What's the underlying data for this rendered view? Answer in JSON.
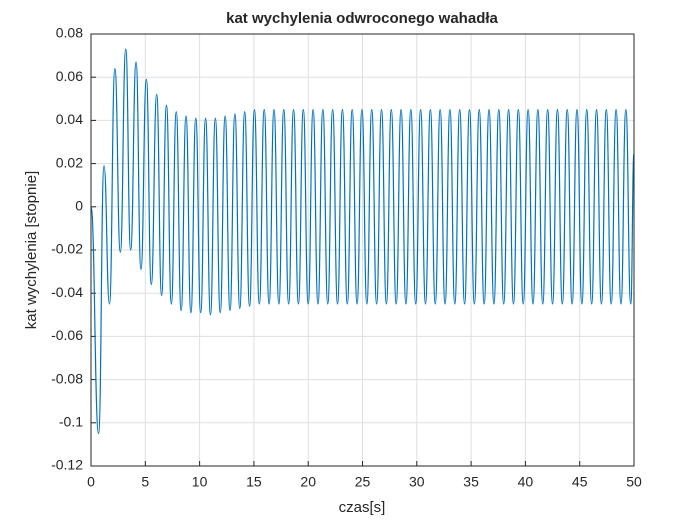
{
  "chart_data": {
    "type": "line",
    "title": "kat wychylenia odwroconego wahadła",
    "x_label": "czas[s]",
    "y_label": "kat wychylenia [stopnie]",
    "xlim": [
      0,
      50
    ],
    "xticks": [
      0,
      5,
      10,
      15,
      20,
      25,
      30,
      35,
      40,
      45,
      50
    ],
    "ylim": [
      -0.12,
      0.08
    ],
    "yticks": [
      -0.12,
      -0.1,
      -0.08,
      -0.06,
      -0.04,
      -0.02,
      0,
      0.02,
      0.04,
      0.06,
      0.08
    ],
    "grid": true,
    "series": [
      {
        "color": "#0072bd",
        "x": [
          0,
          0.7,
          1.2,
          1.7,
          2.2,
          2.7,
          3.2,
          3.65,
          4.15,
          4.6,
          5.1,
          5.55,
          6.05,
          6.5,
          6.95,
          7.4,
          7.85,
          8.3,
          8.75,
          9.2,
          9.65,
          10.1,
          10.55,
          11.0,
          11.45,
          11.9,
          12.35,
          12.8,
          13.25,
          13.7,
          14.15,
          14.6,
          15.05,
          15.5,
          15.95,
          16.4,
          16.85,
          17.3,
          17.75,
          18.2,
          18.65,
          19.1,
          19.55,
          20.0,
          20.45,
          20.9,
          21.35,
          21.8,
          22.25,
          22.7,
          23.15,
          23.6,
          24.05,
          24.5,
          24.95,
          25.4,
          25.85,
          26.3,
          26.75,
          27.2,
          27.65,
          28.1,
          28.55,
          29.0,
          29.45,
          29.9,
          30.35,
          30.8,
          31.25,
          31.7,
          32.15,
          32.6,
          33.05,
          33.5,
          33.95,
          34.4,
          34.85,
          35.3,
          35.75,
          36.2,
          36.65,
          37.1,
          37.55,
          38.0,
          38.45,
          38.9,
          39.35,
          39.8,
          40.25,
          40.7,
          41.15,
          41.6,
          42.05,
          42.5,
          42.95,
          43.4,
          43.85,
          44.3,
          44.75,
          45.2,
          45.65,
          46.1,
          46.55,
          47.0,
          47.45,
          47.9,
          48.35,
          48.8,
          49.25,
          49.7,
          50.0
        ],
        "values": [
          0,
          -0.105,
          0.019,
          -0.045,
          0.064,
          -0.021,
          0.073,
          -0.02,
          0.067,
          -0.029,
          0.059,
          -0.036,
          0.052,
          -0.041,
          0.047,
          -0.045,
          0.044,
          -0.048,
          0.042,
          -0.049,
          0.041,
          -0.049,
          0.041,
          -0.05,
          0.041,
          -0.049,
          0.042,
          -0.048,
          0.043,
          -0.047,
          0.044,
          -0.046,
          0.045,
          -0.045,
          0.045,
          -0.045,
          0.045,
          -0.045,
          0.045,
          -0.045,
          0.045,
          -0.045,
          0.045,
          -0.045,
          0.045,
          -0.045,
          0.045,
          -0.045,
          0.045,
          -0.045,
          0.045,
          -0.045,
          0.045,
          -0.045,
          0.045,
          -0.045,
          0.045,
          -0.045,
          0.045,
          -0.045,
          0.045,
          -0.045,
          0.045,
          -0.045,
          0.045,
          -0.045,
          0.045,
          -0.045,
          0.045,
          -0.045,
          0.045,
          -0.045,
          0.045,
          -0.045,
          0.045,
          -0.045,
          0.045,
          -0.045,
          0.045,
          -0.045,
          0.045,
          -0.045,
          0.045,
          -0.045,
          0.045,
          -0.045,
          0.045,
          -0.045,
          0.045,
          -0.045,
          0.045,
          -0.045,
          0.045,
          -0.045,
          0.045,
          -0.045,
          0.045,
          -0.045,
          0.045,
          -0.045,
          0.045,
          -0.045,
          0.045,
          -0.045,
          0.045,
          -0.045,
          0.045,
          -0.045,
          0.045,
          -0.045,
          0.025
        ]
      }
    ]
  }
}
